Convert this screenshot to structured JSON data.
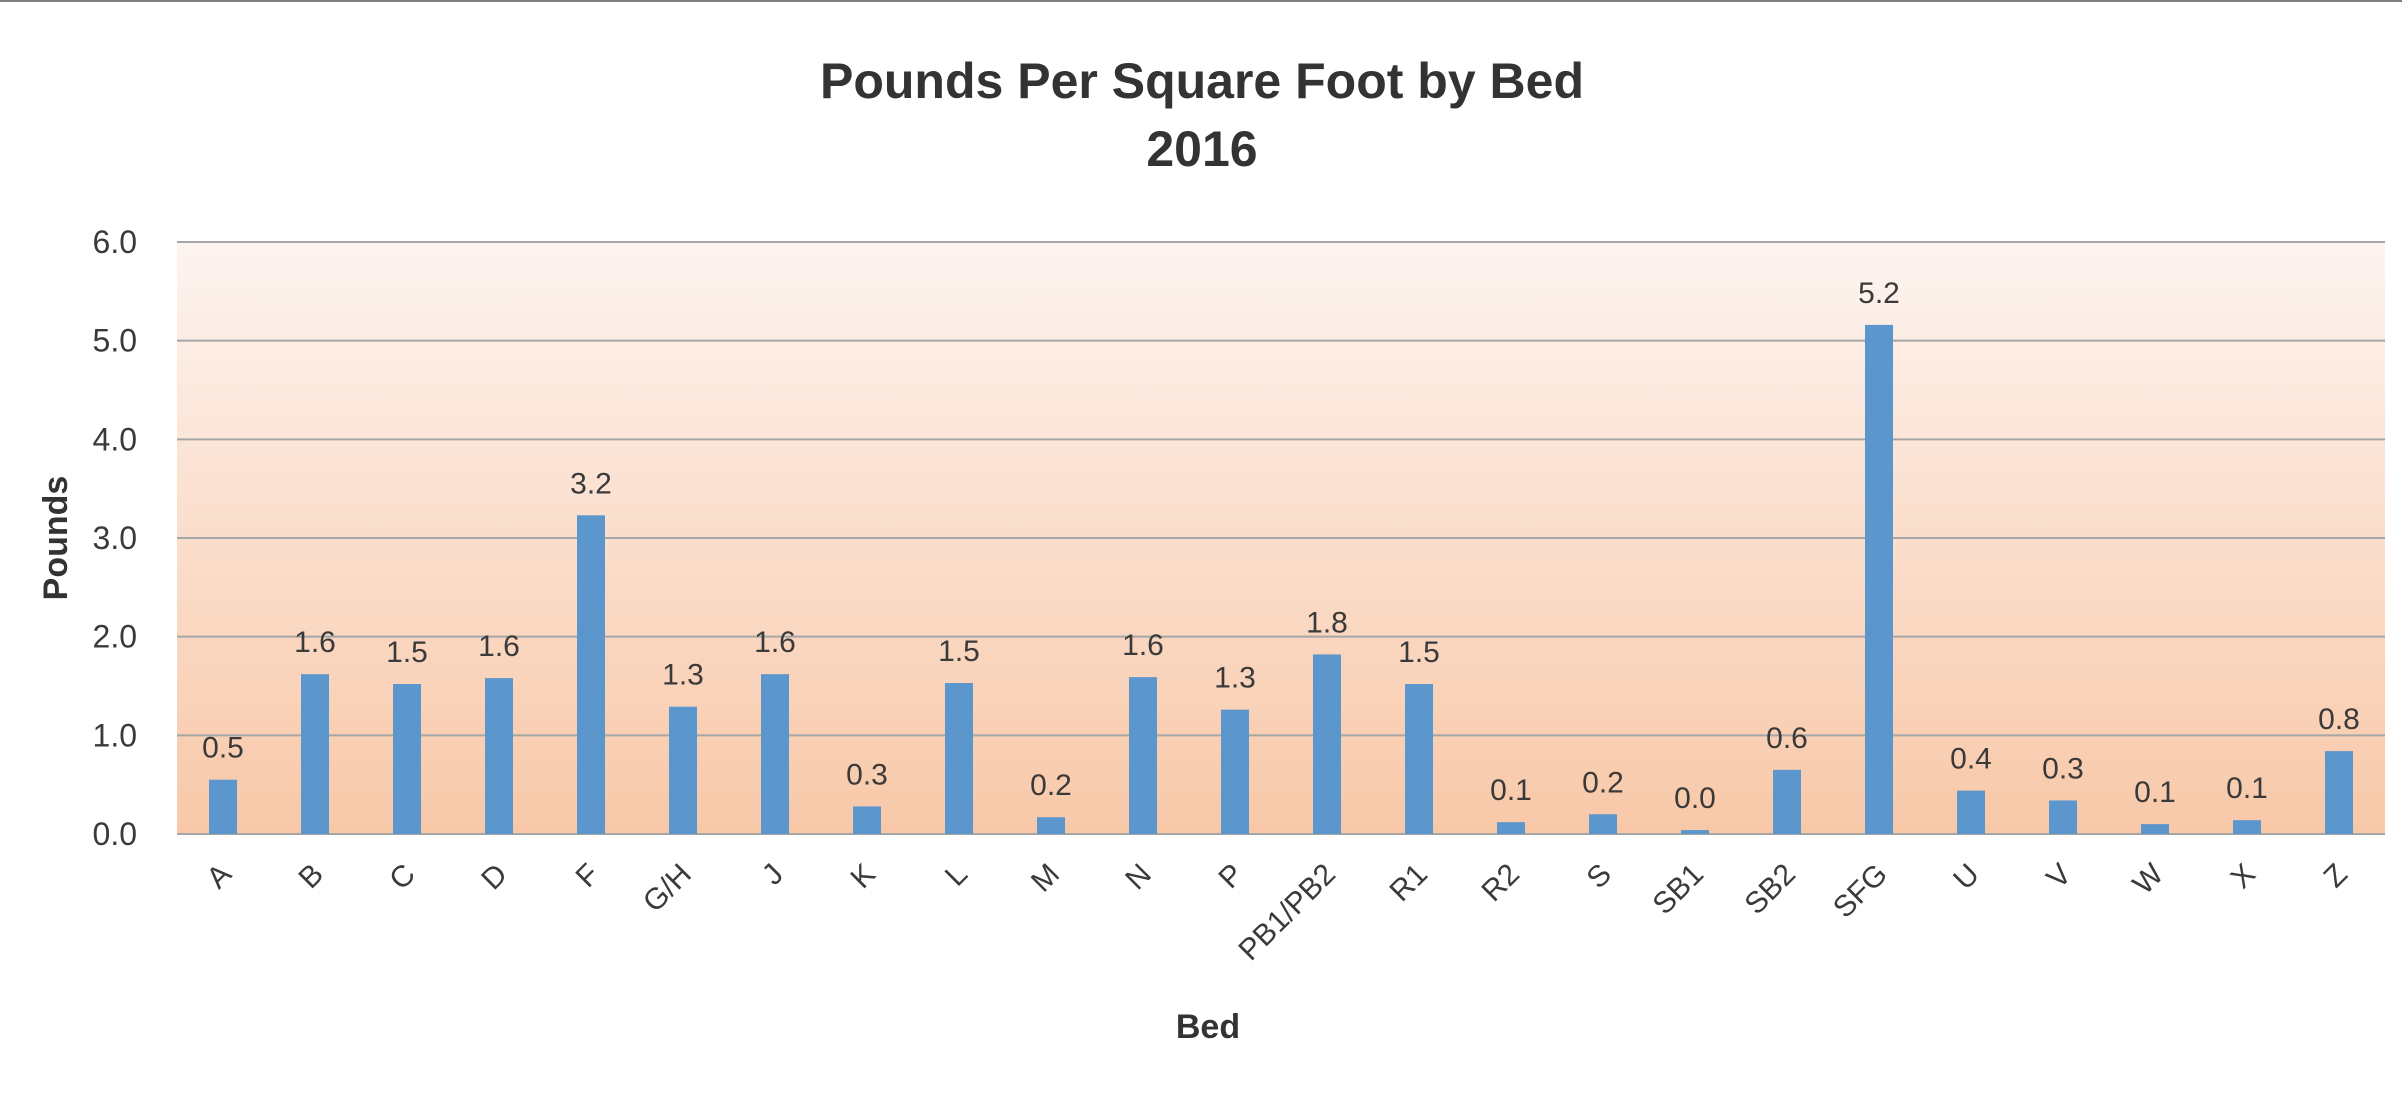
{
  "chart_data": {
    "type": "bar",
    "title": "Pounds Per Square Foot by Bed",
    "subtitle": "2016",
    "xlabel": "Bed",
    "ylabel": "Pounds",
    "ylim": [
      0,
      6
    ],
    "yticks": [
      "0.0",
      "1.0",
      "2.0",
      "3.0",
      "4.0",
      "5.0",
      "6.0"
    ],
    "grid": true,
    "categories": [
      "A",
      "B",
      "C",
      "D",
      "F",
      "G/H",
      "J",
      "K",
      "L",
      "M",
      "N",
      "P",
      "PB1/PB2",
      "R1",
      "R2",
      "S",
      "SB1",
      "SB2",
      "SFG",
      "U",
      "V",
      "W",
      "X",
      "Z"
    ],
    "values": [
      0.55,
      1.62,
      1.52,
      1.58,
      3.23,
      1.29,
      1.62,
      0.28,
      1.53,
      0.17,
      1.59,
      1.26,
      1.82,
      1.52,
      0.12,
      0.2,
      0.04,
      0.65,
      5.16,
      0.44,
      0.34,
      0.1,
      0.14,
      0.84
    ],
    "data_labels": [
      "0.5",
      "1.6",
      "1.5",
      "1.6",
      "3.2",
      "1.3",
      "1.6",
      "0.3",
      "1.5",
      "0.2",
      "1.6",
      "1.3",
      "1.8",
      "1.5",
      "0.1",
      "0.2",
      "0.0",
      "0.6",
      "5.2",
      "0.4",
      "0.3",
      "0.1",
      "0.1",
      "0.8"
    ],
    "colors": {
      "bar": "#5b96cc",
      "gridline": "#a6a6a6",
      "plot_top": "#fdf4f0",
      "plot_bottom": "#f8c8a8"
    }
  }
}
